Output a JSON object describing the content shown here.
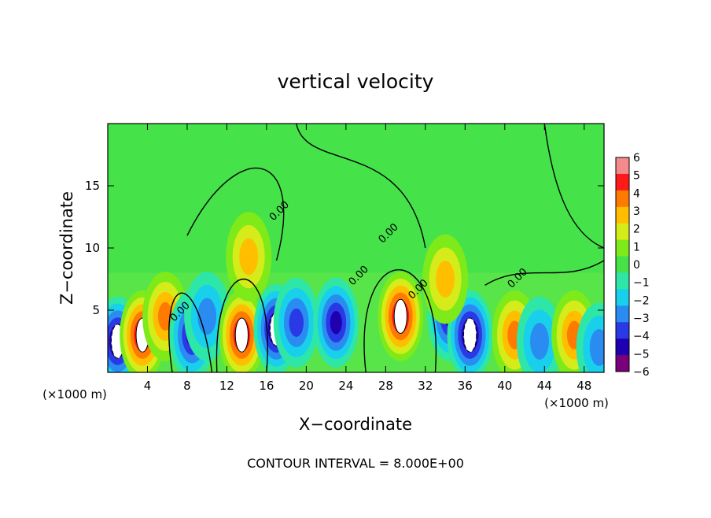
{
  "chart_data": {
    "type": "heatmap",
    "title": "vertical velocity",
    "xlabel": "X−coordinate",
    "ylabel": "Z−coordinate",
    "x_unit_left": "(×1000 m)",
    "x_unit_right": "(×1000 m)",
    "footer": "CONTOUR INTERVAL = 8.000E+00",
    "xlim": [
      0,
      50
    ],
    "ylim": [
      0,
      20
    ],
    "x_ticks": [
      4,
      8,
      12,
      16,
      20,
      24,
      28,
      32,
      36,
      40,
      44,
      48
    ],
    "y_ticks": [
      5,
      10,
      15
    ],
    "colorbar": {
      "min": -6,
      "max": 6,
      "tick_labels": [
        "6",
        "5",
        "4",
        "3",
        "2",
        "1",
        "0",
        "−1",
        "−2",
        "−3",
        "−4",
        "−5",
        "−6"
      ],
      "colors": [
        "#7a007a",
        "#1f00b0",
        "#2a39e6",
        "#2a8cf0",
        "#19d0ec",
        "#2ee6a8",
        "#45e24a",
        "#7eea1a",
        "#d5ec1a",
        "#ffbf00",
        "#ff7a00",
        "#ff1a1a",
        "#f48a8a"
      ]
    },
    "contour_labels": [
      {
        "text": "0.00",
        "x": 7.5,
        "z": 4.7
      },
      {
        "text": "0.00",
        "x": 17.5,
        "z": 12.8
      },
      {
        "text": "0.00",
        "x": 25.5,
        "z": 7.6
      },
      {
        "text": "0.00",
        "x": 28.5,
        "z": 11.0
      },
      {
        "text": "0.00",
        "x": 31.5,
        "z": 6.5
      },
      {
        "text": "0.00",
        "x": 41.5,
        "z": 7.4
      }
    ],
    "cells": [
      {
        "x": 1.0,
        "z": 2.5,
        "v": -6
      },
      {
        "x": 3.5,
        "z": 3.0,
        "v": 6
      },
      {
        "x": 5.8,
        "z": 4.5,
        "v": 4
      },
      {
        "x": 8.5,
        "z": 3.0,
        "v": -5
      },
      {
        "x": 10.0,
        "z": 4.5,
        "v": -3
      },
      {
        "x": 13.5,
        "z": 3.0,
        "v": 6
      },
      {
        "x": 17.0,
        "z": 3.5,
        "v": -6
      },
      {
        "x": 19.0,
        "z": 4.0,
        "v": -4
      },
      {
        "x": 23.0,
        "z": 4.0,
        "v": -5
      },
      {
        "x": 29.5,
        "z": 4.5,
        "v": 6
      },
      {
        "x": 34.5,
        "z": 4.5,
        "v": -5
      },
      {
        "x": 36.5,
        "z": 3.0,
        "v": -6
      },
      {
        "x": 41.0,
        "z": 3.0,
        "v": 4
      },
      {
        "x": 43.5,
        "z": 2.5,
        "v": -3
      },
      {
        "x": 47.0,
        "z": 3.0,
        "v": 4
      },
      {
        "x": 49.5,
        "z": 2.0,
        "v": -3
      },
      {
        "x": 14.2,
        "z": 9.3,
        "v": 3
      },
      {
        "x": 34.0,
        "z": 7.5,
        "v": 3
      }
    ]
  }
}
